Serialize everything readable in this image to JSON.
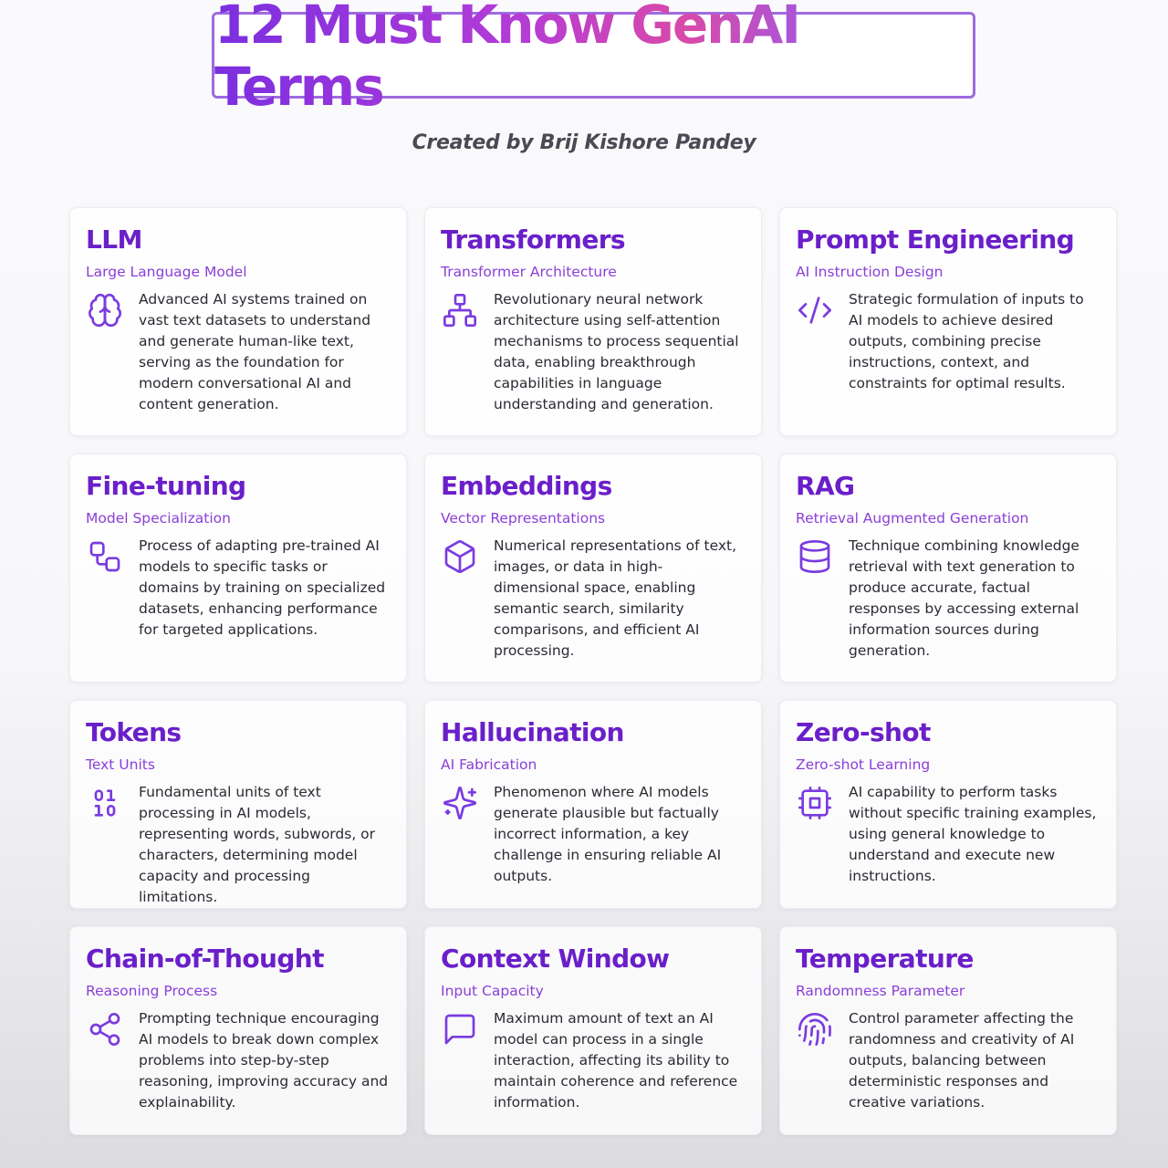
{
  "header": {
    "title": "12 Must Know GenAI Terms",
    "subtitle": "Created by Brij Kishore Pandey"
  },
  "cards": [
    {
      "title": "LLM",
      "subtitle": "Large Language Model",
      "icon": "brain-icon",
      "description": "Advanced AI systems trained on vast text datasets to understand and generate human-like text, serving as the foundation for modern conversational AI and content generation."
    },
    {
      "title": "Transformers",
      "subtitle": "Transformer Architecture",
      "icon": "network-icon",
      "description": "Revolutionary neural network architecture using self-attention mechanisms to process sequential data, enabling breakthrough capabilities in language understanding and generation."
    },
    {
      "title": "Prompt Engineering",
      "subtitle": "AI Instruction Design",
      "icon": "code-icon",
      "description": "Strategic formulation of inputs to AI models to achieve desired outputs, combining precise instructions, context, and constraints for optimal results."
    },
    {
      "title": "Fine-tuning",
      "subtitle": "Model Specialization",
      "icon": "workflow-icon",
      "description": "Process of adapting pre-trained AI models to specific tasks or domains by training on specialized datasets, enhancing performance for targeted applications."
    },
    {
      "title": "Embeddings",
      "subtitle": "Vector Representations",
      "icon": "cube-icon",
      "description": "Numerical representations of text, images, or data in high-dimensional space, enabling semantic search, similarity comparisons, and efficient AI processing."
    },
    {
      "title": "RAG",
      "subtitle": "Retrieval Augmented Generation",
      "icon": "database-icon",
      "description": "Technique combining knowledge retrieval with text generation to produce accurate, factual responses by accessing external information sources during generation."
    },
    {
      "title": "Tokens",
      "subtitle": "Text Units",
      "icon": "binary-icon",
      "description": "Fundamental units of text processing in AI models, representing words, subwords, or characters, determining model capacity and processing limitations."
    },
    {
      "title": "Hallucination",
      "subtitle": "AI Fabrication",
      "icon": "sparkles-icon",
      "description": "Phenomenon where AI models generate plausible but factually incorrect information, a key challenge in ensuring reliable AI outputs."
    },
    {
      "title": "Zero-shot",
      "subtitle": "Zero-shot Learning",
      "icon": "cpu-icon",
      "description": "AI capability to perform tasks without specific training examples, using general knowledge to understand and execute new instructions."
    },
    {
      "title": "Chain-of-Thought",
      "subtitle": "Reasoning Process",
      "icon": "share-icon",
      "description": "Prompting technique encouraging AI models to break down complex problems into step-by-step reasoning, improving accuracy and explainability."
    },
    {
      "title": "Context Window",
      "subtitle": "Input Capacity",
      "icon": "message-square-icon",
      "description": "Maximum amount of text an AI model can process in a single interaction, affecting its ability to maintain coherence and reference information."
    },
    {
      "title": "Temperature",
      "subtitle": "Randomness Parameter",
      "icon": "fingerprint-icon",
      "description": "Control parameter affecting the randomness and creativity of AI outputs, balancing between deterministic responses and creative variations."
    }
  ],
  "colors": {
    "title_gradient_start": "#7b2fe0",
    "title_gradient_mid": "#d94aa8",
    "title_gradient_end": "#6e4ff0",
    "card_title": "#6a1fc9",
    "card_subtitle": "#8a3fd8",
    "icon": "#7a3be0",
    "title_border": "#a06ae0"
  }
}
